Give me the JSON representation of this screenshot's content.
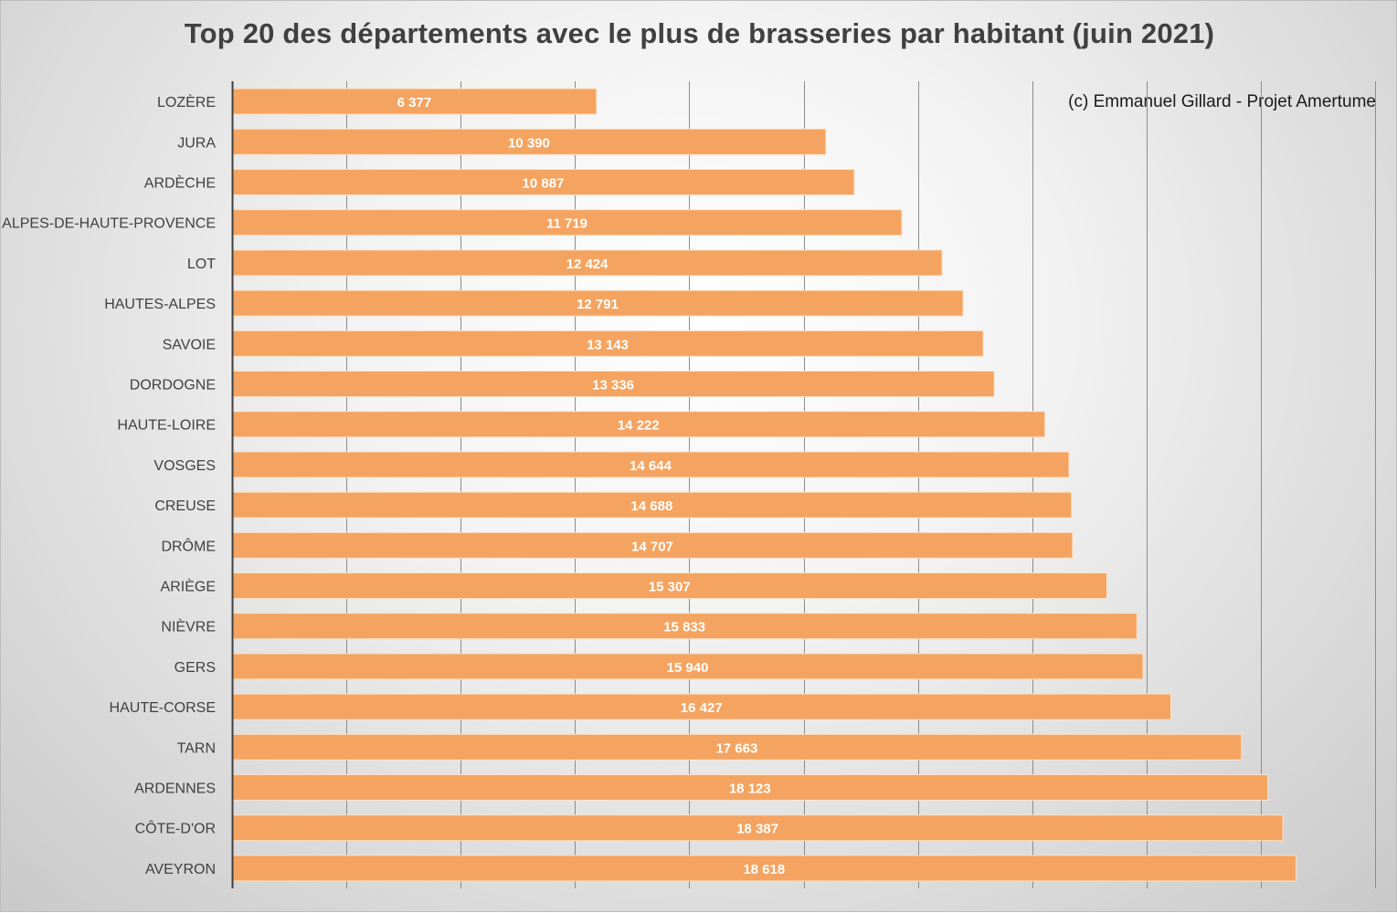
{
  "chart_data": {
    "type": "bar",
    "orientation": "horizontal",
    "title": "Top 20 des départements avec le plus de brasseries par habitant (juin 2021)",
    "annotation": "(c) Emmanuel Gillard - Projet Amertume",
    "categories": [
      "LOZÈRE",
      "JURA",
      "ARDÈCHE",
      "ALPES-DE-HAUTE-PROVENCE",
      "LOT",
      "HAUTES-ALPES",
      "SAVOIE",
      "DORDOGNE",
      "HAUTE-LOIRE",
      "VOSGES",
      "CREUSE",
      "DRÔME",
      "ARIÈGE",
      "NIÈVRE",
      "GERS",
      "HAUTE-CORSE",
      "TARN",
      "ARDENNES",
      "CÔTE-D'OR",
      "AVEYRON"
    ],
    "values": [
      6377,
      10390,
      10887,
      11719,
      12424,
      12791,
      13143,
      13336,
      14222,
      14644,
      14688,
      14707,
      15307,
      15833,
      15940,
      16427,
      17663,
      18123,
      18387,
      18618
    ],
    "value_labels": [
      "6 377",
      "10 390",
      "10 887",
      "11 719",
      "12 424",
      "12 791",
      "13 143",
      "13 336",
      "14 222",
      "14 644",
      "14 688",
      "14 707",
      "15 307",
      "15 833",
      "15 940",
      "16 427",
      "17 663",
      "18 123",
      "18 387",
      "18 618"
    ],
    "xlim": [
      0,
      20000
    ],
    "x_gridline_step": 2000,
    "xlabel": "",
    "ylabel": "",
    "grid": true,
    "legend": "none",
    "bar_color": "#f4a460",
    "bar_border_color": "#fbe2c8",
    "gridline_color": "#8c8c8c"
  }
}
